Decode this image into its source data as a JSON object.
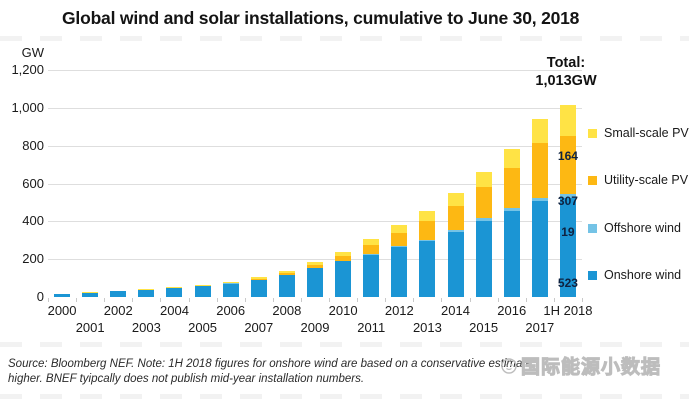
{
  "title": "Global wind and solar installations, cumulative to June 30, 2018",
  "y_axis": {
    "unit": "GW",
    "ticks": [
      {
        "label": "0",
        "value": 0
      },
      {
        "label": "200",
        "value": 200
      },
      {
        "label": "400",
        "value": 400
      },
      {
        "label": "600",
        "value": 600
      },
      {
        "label": "800",
        "value": 800
      },
      {
        "label": "1,000",
        "value": 1000
      },
      {
        "label": "1,200",
        "value": 1200
      }
    ]
  },
  "total_label": {
    "line1": "Total:",
    "line2": "1,013GW"
  },
  "legend": [
    {
      "label": "Small-scale PV",
      "color": "#ffe345"
    },
    {
      "label": "Utility-scale PV",
      "color": "#fdb813"
    },
    {
      "label": "Offshore wind",
      "color": "#74c3e6"
    },
    {
      "label": "Onshore wind",
      "color": "#1b95d4"
    }
  ],
  "chart_data": {
    "type": "bar",
    "stacked": true,
    "title": "Global wind and solar installations, cumulative to June 30, 2018",
    "ylabel": "GW",
    "ylim": [
      0,
      1200
    ],
    "grid": true,
    "legend_position": "right",
    "categories": [
      "2000",
      "2001",
      "2002",
      "2003",
      "2004",
      "2005",
      "2006",
      "2007",
      "2008",
      "2009",
      "2010",
      "2011",
      "2012",
      "2013",
      "2014",
      "2015",
      "2016",
      "2017",
      "1H 2018"
    ],
    "series": [
      {
        "name": "Onshore wind",
        "color": "#1b95d4",
        "values": [
          16.5,
          23,
          30,
          38,
          46,
          57,
          71,
          91,
          116,
          152,
          189,
          223,
          262,
          295,
          345,
          404,
          455,
          505,
          523
        ]
      },
      {
        "name": "Offshore wind",
        "color": "#74c3e6",
        "values": [
          0.2,
          0.2,
          0.3,
          0.5,
          0.6,
          0.8,
          0.9,
          1.1,
          1.5,
          2.1,
          3.1,
          4.6,
          5.4,
          7,
          8.8,
          12,
          14.4,
          18.8,
          19
        ]
      },
      {
        "name": "Utility-scale PV",
        "color": "#fdb813",
        "values": [
          0.2,
          0.3,
          0.4,
          0.6,
          1.1,
          1.8,
          3,
          4.6,
          8,
          14,
          25,
          47,
          70,
          98,
          126,
          163,
          213,
          288,
          307
        ]
      },
      {
        "name": "Small-scale PV",
        "color": "#ffe345",
        "values": [
          1,
          1.2,
          1.7,
          2.3,
          3.2,
          4.4,
          5.6,
          7.4,
          10.5,
          15,
          23,
          33,
          46,
          57,
          68,
          82,
          99,
          131,
          164
        ]
      }
    ],
    "last_bar_labels": [
      "523",
      "19",
      "307",
      "164"
    ],
    "total_annotation": "Total: 1,013GW"
  },
  "source": {
    "line1": "Source: Bloomberg NEF. Note: 1H 2018 figures for onshore wind are based on a conservative estimate",
    "line2": "higher. BNEF tyipcally does not publish mid-year installation numbers."
  },
  "watermark": {
    "text": "国际能源小数据"
  }
}
